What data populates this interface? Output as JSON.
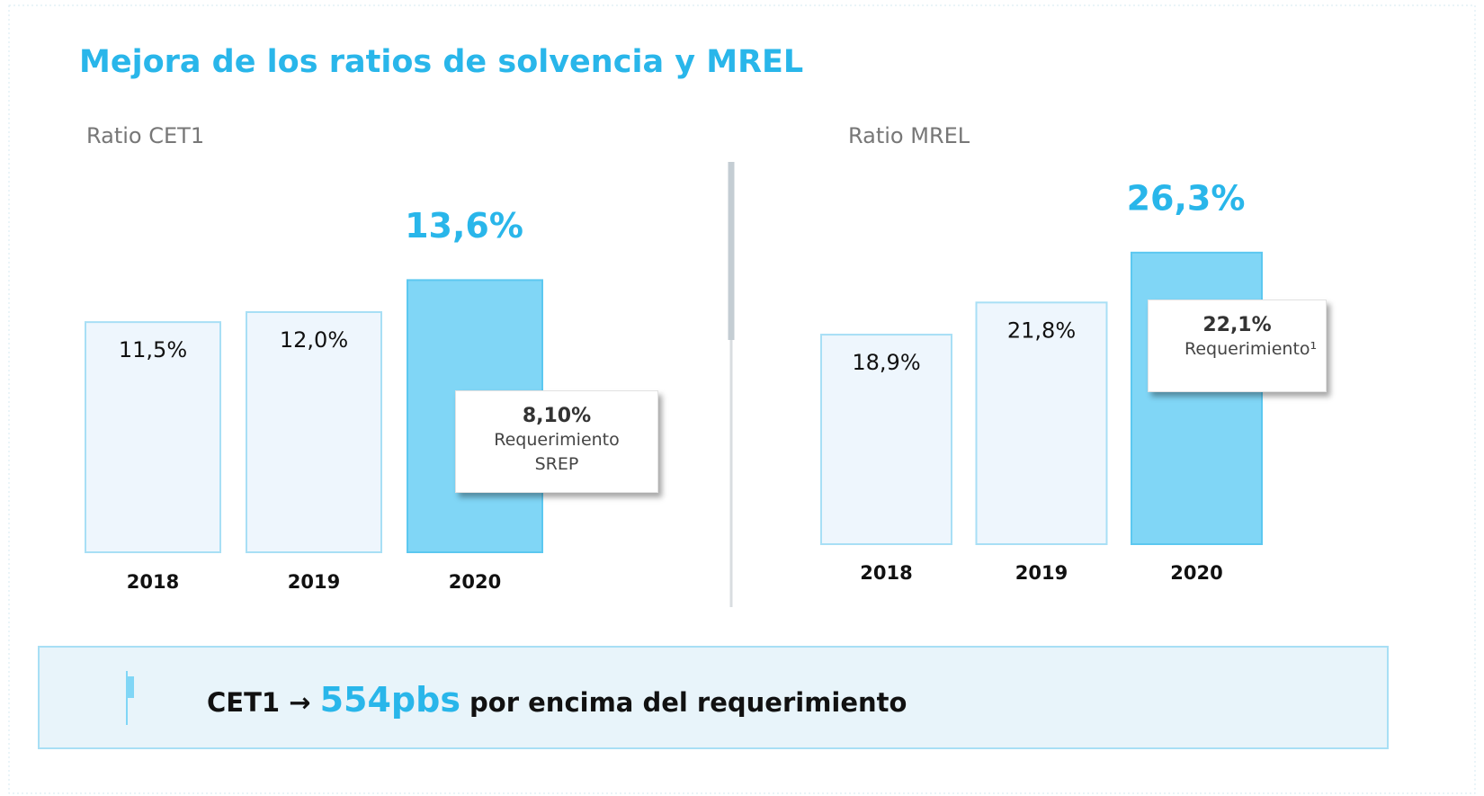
{
  "title": "Mejora de los ratios de solvencia y MREL",
  "chart_data": [
    {
      "type": "bar",
      "title": "Ratio CET1",
      "categories": [
        "2018",
        "2019",
        "2020"
      ],
      "values": [
        11.5,
        12.0,
        13.6
      ],
      "value_labels": [
        "11,5%",
        "12,0%",
        "13,6%"
      ],
      "colors": [
        "#eef6fd",
        "#eef6fd",
        "#80d6f6"
      ],
      "ylim": [
        0,
        20
      ],
      "requirement": {
        "value": 8.1,
        "label": "8,10%",
        "text": "Requerimiento SREP"
      }
    },
    {
      "type": "bar",
      "title": "Ratio MREL",
      "categories": [
        "2018",
        "2019",
        "2020"
      ],
      "values": [
        18.9,
        21.8,
        26.3
      ],
      "value_labels": [
        "18,9%",
        "21,8%",
        "26,3%"
      ],
      "colors": [
        "#eef6fd",
        "#eef6fd",
        "#80d6f6"
      ],
      "ylim": [
        0,
        40
      ],
      "requirement": {
        "value": 22.1,
        "label": "22,1%",
        "text": "Requerimiento¹"
      }
    }
  ],
  "footer": {
    "lead": "CET1",
    "arrow": "→",
    "highlight": "554pbs",
    "text": "por encima del requerimiento"
  }
}
